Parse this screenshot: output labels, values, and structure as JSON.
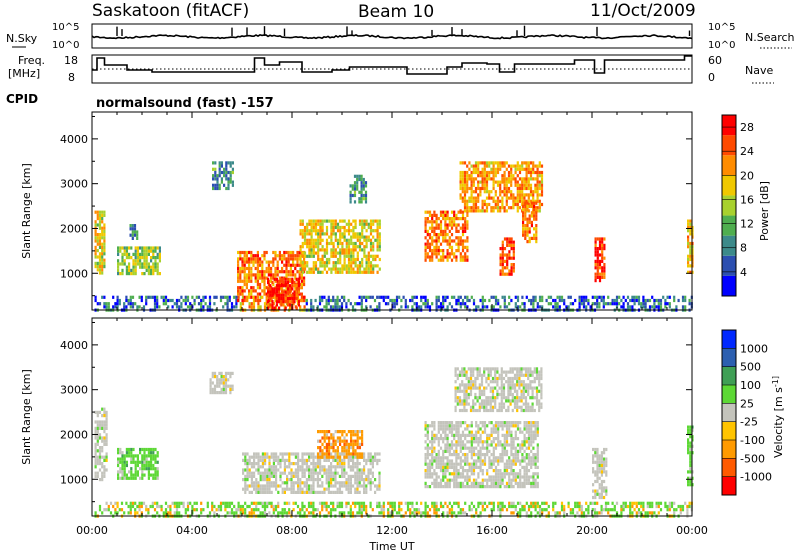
{
  "header": {
    "site": "Saskatoon (fitACF)",
    "beam": "Beam 10",
    "date": "11/Oct/2009"
  },
  "noise_panel": {
    "left_label": "N.Sky",
    "left_ticks": [
      "10^5",
      "10^0"
    ],
    "right_label": "N.Search",
    "right_ticks": [
      "10^5",
      "10^0"
    ]
  },
  "freq_panel": {
    "left_label_1": "Freq.",
    "left_label_2": "[MHz]",
    "left_ticks": [
      "18",
      "8"
    ],
    "right_label": "Nave",
    "right_ticks": [
      "60",
      "0"
    ]
  },
  "cpid": {
    "label": "CPID",
    "value": "normalsound (fast) -157"
  },
  "colors": {
    "power": [
      "#0000ff",
      "#2c4fb0",
      "#3c8a8a",
      "#4fae4f",
      "#a8d12e",
      "#f0c800",
      "#ff8c00",
      "#ff4a00",
      "#ff0000"
    ],
    "velocity": [
      "#ff0000",
      "#ff5a00",
      "#ff9a00",
      "#ffc400",
      "#c4c4bc",
      "#5dd835",
      "#3f9f55",
      "#2c5fb0",
      "#0028ff"
    ]
  },
  "chart_data": [
    {
      "type": "heatmap",
      "title": "Power",
      "xlabel": "Time UT",
      "ylabel": "Slant Range [km]",
      "xlim": [
        "00:00",
        "24:00"
      ],
      "ylim": [
        180,
        4600
      ],
      "x_ticks": [
        "00:00",
        "04:00",
        "08:00",
        "12:00",
        "16:00",
        "20:00",
        "00:00"
      ],
      "y_ticks": [
        1000,
        2000,
        3000,
        4000
      ],
      "colorbar": {
        "label": "Power [dB]",
        "ticks": [
          "4",
          "8",
          "12",
          "16",
          "20",
          "24",
          "28"
        ],
        "range": [
          0,
          30
        ]
      },
      "regions": [
        {
          "t0": 0.1,
          "t1": 24,
          "r0": 200,
          "r1": 500,
          "level": "low-mixed"
        },
        {
          "t0": 0.1,
          "t1": 0.5,
          "r0": 1000,
          "r1": 2400,
          "level": 18
        },
        {
          "t0": 1.0,
          "t1": 2.7,
          "r0": 1000,
          "r1": 1600,
          "level": 14
        },
        {
          "t0": 1.5,
          "t1": 1.8,
          "r0": 1800,
          "r1": 2100,
          "level": 8
        },
        {
          "t0": 4.8,
          "t1": 5.6,
          "r0": 2900,
          "r1": 3500,
          "level": 8
        },
        {
          "t0": 5.8,
          "t1": 8.5,
          "r0": 400,
          "r1": 1500,
          "level": 24
        },
        {
          "t0": 7.0,
          "t1": 8.3,
          "r0": 250,
          "r1": 900,
          "level": 29
        },
        {
          "t0": 8.3,
          "t1": 11.5,
          "r0": 1000,
          "r1": 2200,
          "level": 18
        },
        {
          "t0": 10.3,
          "t1": 11.0,
          "r0": 2600,
          "r1": 3200,
          "level": 8
        },
        {
          "t0": 13.3,
          "t1": 15.0,
          "r0": 1300,
          "r1": 2400,
          "level": 24
        },
        {
          "t0": 14.7,
          "t1": 18.0,
          "r0": 2400,
          "r1": 3500,
          "level": 22
        },
        {
          "t0": 16.3,
          "t1": 16.9,
          "r0": 1000,
          "r1": 1800,
          "level": 27
        },
        {
          "t0": 17.2,
          "t1": 17.8,
          "r0": 1700,
          "r1": 2600,
          "level": 24
        },
        {
          "t0": 20.1,
          "t1": 20.5,
          "r0": 800,
          "r1": 1800,
          "level": 27
        },
        {
          "t0": 23.8,
          "t1": 24.0,
          "r0": 1000,
          "r1": 2200,
          "level": 20
        }
      ]
    },
    {
      "type": "heatmap",
      "title": "Velocity",
      "xlabel": "Time UT",
      "ylabel": "Slant Range [km]",
      "xlim": [
        "00:00",
        "24:00"
      ],
      "ylim": [
        180,
        4600
      ],
      "x_ticks": [
        "00:00",
        "04:00",
        "08:00",
        "12:00",
        "16:00",
        "20:00",
        "00:00"
      ],
      "y_ticks": [
        1000,
        2000,
        3000,
        4000
      ],
      "colorbar": {
        "label": "Velocity [m s^-1]",
        "ticks": [
          "1000",
          "500",
          "100",
          "25",
          "-25",
          "-100",
          "-500",
          "-1000"
        ]
      },
      "regions": [
        {
          "t0": 0.1,
          "t1": 24,
          "r0": 200,
          "r1": 500,
          "level": "green-mixed"
        },
        {
          "t0": 0.1,
          "t1": 0.6,
          "r0": 1000,
          "r1": 2600,
          "level": "grey"
        },
        {
          "t0": 1.0,
          "t1": 2.6,
          "r0": 1000,
          "r1": 1700,
          "level": "green"
        },
        {
          "t0": 4.7,
          "t1": 5.6,
          "r0": 2900,
          "r1": 3400,
          "level": "grey"
        },
        {
          "t0": 6.0,
          "t1": 11.5,
          "r0": 700,
          "r1": 1600,
          "level": "grey"
        },
        {
          "t0": 9.0,
          "t1": 10.8,
          "r0": 1500,
          "r1": 2100,
          "level": "orange"
        },
        {
          "t0": 13.3,
          "t1": 17.8,
          "r0": 800,
          "r1": 2300,
          "level": "grey"
        },
        {
          "t0": 14.5,
          "t1": 18.0,
          "r0": 2500,
          "r1": 3500,
          "level": "grey"
        },
        {
          "t0": 20.0,
          "t1": 20.6,
          "r0": 600,
          "r1": 1700,
          "level": "grey"
        },
        {
          "t0": 23.8,
          "t1": 24.0,
          "r0": 900,
          "r1": 2200,
          "level": "green"
        }
      ]
    }
  ]
}
